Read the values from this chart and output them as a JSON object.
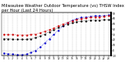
{
  "title": "Milwaukee Weather Outdoor Temperature (vs) THSW Index per Hour (Last 24 Hours)",
  "title_fontsize": 3.8,
  "background_color": "#ffffff",
  "grid_color": "#bbbbbb",
  "hours": [
    0,
    1,
    2,
    3,
    4,
    5,
    6,
    7,
    8,
    9,
    10,
    11,
    12,
    13,
    14,
    15,
    16,
    17,
    18,
    19,
    20,
    21,
    22,
    23
  ],
  "temp_red": [
    30,
    30,
    30,
    29,
    29,
    29,
    30,
    31,
    33,
    36,
    39,
    42,
    46,
    50,
    53,
    56,
    58,
    60,
    61,
    62,
    63,
    63,
    64,
    65
  ],
  "thsw_blue": [
    -5,
    -6,
    -7,
    -8,
    -8,
    -7,
    -4,
    0,
    6,
    14,
    22,
    30,
    38,
    46,
    52,
    57,
    60,
    62,
    63,
    64,
    65,
    65,
    66,
    67
  ],
  "dew_black": [
    22,
    22,
    21,
    21,
    21,
    21,
    22,
    24,
    27,
    31,
    35,
    39,
    43,
    47,
    50,
    52,
    54,
    55,
    56,
    57,
    57,
    57,
    58,
    58
  ],
  "ylim": [
    -10,
    72
  ],
  "yticks": [
    -10,
    0,
    10,
    20,
    30,
    40,
    50,
    60,
    70
  ],
  "red_color": "#cc0000",
  "blue_color": "#0000cc",
  "black_color": "#000000",
  "marker_size": 1.5,
  "line_width": 0.5
}
